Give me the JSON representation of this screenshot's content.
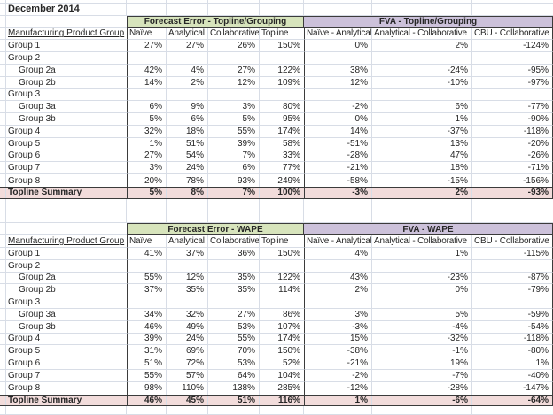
{
  "title": "December 2014",
  "colors": {
    "header_green": "#d7e4bc",
    "header_purple": "#ccc1da",
    "summary_pink": "#f2dcdb",
    "border_dark": "#3b3b3b",
    "gridline": "#d8dde6"
  },
  "columns": {
    "group_header": "Manufacturing Product Group",
    "error_cols": [
      "Naïve",
      "Analytical",
      "Collaborative",
      "Topline"
    ],
    "fva_cols": [
      "Naïve - Analytical",
      "Analytical - Collaborative",
      "CBU - Collaborative"
    ]
  },
  "tables": [
    {
      "error_title": "Forecast Error - Topline/Grouping",
      "fva_title": "FVA - Topline/Grouping",
      "summary_label": "Topline Summary",
      "rows": [
        {
          "label": "Group 1",
          "indent": false,
          "error": [
            "27%",
            "27%",
            "26%",
            "150%"
          ],
          "fva": [
            "0%",
            "2%",
            "-124%"
          ]
        },
        {
          "label": "Group 2",
          "indent": false,
          "error": [
            "",
            "",
            "",
            ""
          ],
          "fva": [
            "",
            "",
            ""
          ]
        },
        {
          "label": "Group 2a",
          "indent": true,
          "error": [
            "42%",
            "4%",
            "27%",
            "122%"
          ],
          "fva": [
            "38%",
            "-24%",
            "-95%"
          ]
        },
        {
          "label": "Group 2b",
          "indent": true,
          "error": [
            "14%",
            "2%",
            "12%",
            "109%"
          ],
          "fva": [
            "12%",
            "-10%",
            "-97%"
          ]
        },
        {
          "label": "Group 3",
          "indent": false,
          "error": [
            "",
            "",
            "",
            ""
          ],
          "fva": [
            "",
            "",
            ""
          ]
        },
        {
          "label": "Group 3a",
          "indent": true,
          "error": [
            "6%",
            "9%",
            "3%",
            "80%"
          ],
          "fva": [
            "-2%",
            "6%",
            "-77%"
          ]
        },
        {
          "label": "Group 3b",
          "indent": true,
          "error": [
            "5%",
            "6%",
            "5%",
            "95%"
          ],
          "fva": [
            "0%",
            "1%",
            "-90%"
          ]
        },
        {
          "label": "Group 4",
          "indent": false,
          "error": [
            "32%",
            "18%",
            "55%",
            "174%"
          ],
          "fva": [
            "14%",
            "-37%",
            "-118%"
          ]
        },
        {
          "label": "Group 5",
          "indent": false,
          "error": [
            "1%",
            "51%",
            "39%",
            "58%"
          ],
          "fva": [
            "-51%",
            "13%",
            "-20%"
          ]
        },
        {
          "label": "Group 6",
          "indent": false,
          "error": [
            "27%",
            "54%",
            "7%",
            "33%"
          ],
          "fva": [
            "-28%",
            "47%",
            "-26%"
          ]
        },
        {
          "label": "Group 7",
          "indent": false,
          "error": [
            "3%",
            "24%",
            "6%",
            "77%"
          ],
          "fva": [
            "-21%",
            "18%",
            "-71%"
          ]
        },
        {
          "label": "Group 8",
          "indent": false,
          "error": [
            "20%",
            "78%",
            "93%",
            "249%"
          ],
          "fva": [
            "-58%",
            "-15%",
            "-156%"
          ]
        }
      ],
      "summary": {
        "error": [
          "5%",
          "8%",
          "7%",
          "100%"
        ],
        "fva": [
          "-3%",
          "2%",
          "-93%"
        ]
      }
    },
    {
      "error_title": "Forecast Error - WAPE",
      "fva_title": "FVA - WAPE",
      "summary_label": "Topline Summary",
      "rows": [
        {
          "label": "Group 1",
          "indent": false,
          "error": [
            "41%",
            "37%",
            "36%",
            "150%"
          ],
          "fva": [
            "4%",
            "1%",
            "-115%"
          ]
        },
        {
          "label": "Group 2",
          "indent": false,
          "error": [
            "",
            "",
            "",
            ""
          ],
          "fva": [
            "",
            "",
            ""
          ]
        },
        {
          "label": "Group 2a",
          "indent": true,
          "error": [
            "55%",
            "12%",
            "35%",
            "122%"
          ],
          "fva": [
            "43%",
            "-23%",
            "-87%"
          ]
        },
        {
          "label": "Group 2b",
          "indent": true,
          "error": [
            "37%",
            "35%",
            "35%",
            "114%"
          ],
          "fva": [
            "2%",
            "0%",
            "-79%"
          ]
        },
        {
          "label": "Group 3",
          "indent": false,
          "error": [
            "",
            "",
            "",
            ""
          ],
          "fva": [
            "",
            "",
            ""
          ]
        },
        {
          "label": "Group 3a",
          "indent": true,
          "error": [
            "34%",
            "32%",
            "27%",
            "86%"
          ],
          "fva": [
            "3%",
            "5%",
            "-59%"
          ]
        },
        {
          "label": "Group 3b",
          "indent": true,
          "error": [
            "46%",
            "49%",
            "53%",
            "107%"
          ],
          "fva": [
            "-3%",
            "-4%",
            "-54%"
          ]
        },
        {
          "label": "Group 4",
          "indent": false,
          "error": [
            "39%",
            "24%",
            "55%",
            "174%"
          ],
          "fva": [
            "15%",
            "-32%",
            "-118%"
          ]
        },
        {
          "label": "Group 5",
          "indent": false,
          "error": [
            "31%",
            "69%",
            "70%",
            "150%"
          ],
          "fva": [
            "-38%",
            "-1%",
            "-80%"
          ]
        },
        {
          "label": "Group 6",
          "indent": false,
          "error": [
            "51%",
            "72%",
            "53%",
            "52%"
          ],
          "fva": [
            "-21%",
            "19%",
            "1%"
          ]
        },
        {
          "label": "Group 7",
          "indent": false,
          "error": [
            "55%",
            "57%",
            "64%",
            "104%"
          ],
          "fva": [
            "-2%",
            "-7%",
            "-40%"
          ]
        },
        {
          "label": "Group 8",
          "indent": false,
          "error": [
            "98%",
            "110%",
            "138%",
            "285%"
          ],
          "fva": [
            "-12%",
            "-28%",
            "-147%"
          ]
        }
      ],
      "summary": {
        "error": [
          "46%",
          "45%",
          "51%",
          "116%"
        ],
        "fva": [
          "1%",
          "-6%",
          "-64%"
        ]
      }
    }
  ]
}
